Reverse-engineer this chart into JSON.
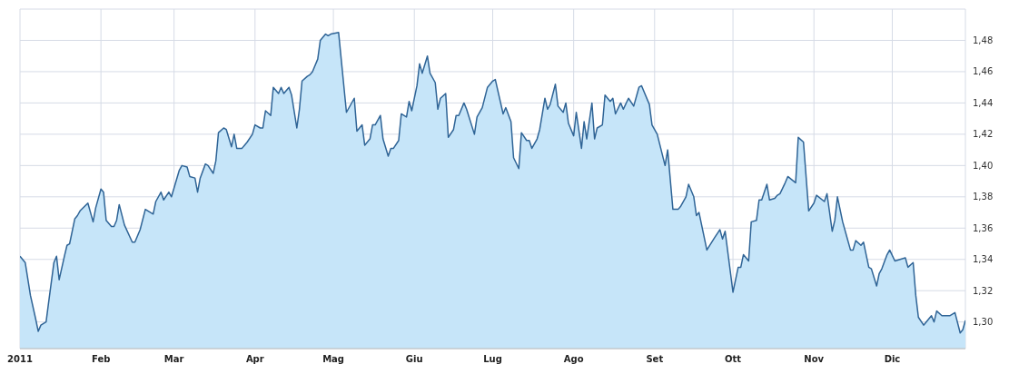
{
  "chart_data": {
    "type": "area",
    "x": [
      "2011-01-01",
      "2011-01-03",
      "2011-01-05",
      "2011-01-07",
      "2011-01-08",
      "2011-01-09",
      "2011-01-11",
      "2011-01-12",
      "2011-01-14",
      "2011-01-15",
      "2011-01-16",
      "2011-01-18",
      "2011-01-19",
      "2011-01-20",
      "2011-01-22",
      "2011-01-23",
      "2011-01-24",
      "2011-01-27",
      "2011-01-29",
      "2011-01-30",
      "2011-02-01",
      "2011-02-02",
      "2011-02-03",
      "2011-02-05",
      "2011-02-06",
      "2011-02-07",
      "2011-02-08",
      "2011-02-10",
      "2011-02-13",
      "2011-02-14",
      "2011-02-16",
      "2011-02-18",
      "2011-02-21",
      "2011-02-22",
      "2011-02-24",
      "2011-02-25",
      "2011-02-27",
      "2011-02-28",
      "2011-03-03",
      "2011-03-04",
      "2011-03-06",
      "2011-03-07",
      "2011-03-09",
      "2011-03-10",
      "2011-03-11",
      "2011-03-13",
      "2011-03-14",
      "2011-03-16",
      "2011-03-17",
      "2011-03-18",
      "2011-03-20",
      "2011-03-21",
      "2011-03-23",
      "2011-03-24",
      "2011-03-25",
      "2011-03-27",
      "2011-03-28",
      "2011-03-29",
      "2011-03-31",
      "2011-04-01",
      "2011-04-03",
      "2011-04-04",
      "2011-04-05",
      "2011-04-07",
      "2011-04-08",
      "2011-04-10",
      "2011-04-11",
      "2011-04-12",
      "2011-04-14",
      "2011-04-15",
      "2011-04-17",
      "2011-04-18",
      "2011-04-19",
      "2011-04-21",
      "2011-04-22",
      "2011-04-23",
      "2011-04-25",
      "2011-04-26",
      "2011-04-28",
      "2011-04-29",
      "2011-04-30",
      "2011-05-03",
      "2011-05-06",
      "2011-05-09",
      "2011-05-10",
      "2011-05-12",
      "2011-05-13",
      "2011-05-15",
      "2011-05-16",
      "2011-05-17",
      "2011-05-19",
      "2011-05-20",
      "2011-05-22",
      "2011-05-23",
      "2011-05-24",
      "2011-05-26",
      "2011-05-27",
      "2011-05-29",
      "2011-05-30",
      "2011-05-31",
      "2011-06-02",
      "2011-06-03",
      "2011-06-04",
      "2011-06-06",
      "2011-06-07",
      "2011-06-09",
      "2011-06-10",
      "2011-06-11",
      "2011-06-13",
      "2011-06-14",
      "2011-06-16",
      "2011-06-17",
      "2011-06-18",
      "2011-06-20",
      "2011-06-21",
      "2011-06-24",
      "2011-06-25",
      "2011-06-27",
      "2011-06-29",
      "2011-07-01",
      "2011-07-02",
      "2011-07-05",
      "2011-07-06",
      "2011-07-08",
      "2011-07-09",
      "2011-07-11",
      "2011-07-12",
      "2011-07-14",
      "2011-07-15",
      "2011-07-16",
      "2011-07-18",
      "2011-07-19",
      "2011-07-21",
      "2011-07-22",
      "2011-07-23",
      "2011-07-25",
      "2011-07-26",
      "2011-07-28",
      "2011-07-29",
      "2011-07-30",
      "2011-08-01",
      "2011-08-02",
      "2011-08-04",
      "2011-08-05",
      "2011-08-06",
      "2011-08-08",
      "2011-08-09",
      "2011-08-10",
      "2011-08-12",
      "2011-08-13",
      "2011-08-15",
      "2011-08-16",
      "2011-08-17",
      "2011-08-19",
      "2011-08-20",
      "2011-08-22",
      "2011-08-24",
      "2011-08-26",
      "2011-08-27",
      "2011-08-30",
      "2011-08-31",
      "2011-09-02",
      "2011-09-05",
      "2011-09-06",
      "2011-09-08",
      "2011-09-10",
      "2011-09-11",
      "2011-09-13",
      "2011-09-14",
      "2011-09-16",
      "2011-09-17",
      "2011-09-18",
      "2011-09-21",
      "2011-09-24",
      "2011-09-26",
      "2011-09-27",
      "2011-09-28",
      "2011-10-01",
      "2011-10-03",
      "2011-10-04",
      "2011-10-05",
      "2011-10-07",
      "2011-10-08",
      "2011-10-10",
      "2011-10-11",
      "2011-10-12",
      "2011-10-14",
      "2011-10-15",
      "2011-10-17",
      "2011-10-18",
      "2011-10-19",
      "2011-10-21",
      "2011-10-22",
      "2011-10-25",
      "2011-10-26",
      "2011-10-28",
      "2011-10-30",
      "2011-11-01",
      "2011-11-02",
      "2011-11-05",
      "2011-11-06",
      "2011-11-08",
      "2011-11-09",
      "2011-11-10",
      "2011-11-12",
      "2011-11-15",
      "2011-11-16",
      "2011-11-17",
      "2011-11-19",
      "2011-11-20",
      "2011-11-22",
      "2011-11-23",
      "2011-11-25",
      "2011-11-26",
      "2011-11-27",
      "2011-11-29",
      "2011-11-30",
      "2011-12-02",
      "2011-12-04",
      "2011-12-06",
      "2011-12-07",
      "2011-12-09",
      "2011-12-10",
      "2011-12-11",
      "2011-12-13",
      "2011-12-16",
      "2011-12-17",
      "2011-12-18",
      "2011-12-20",
      "2011-12-23",
      "2011-12-25",
      "2011-12-27",
      "2011-12-28",
      "2011-12-29"
    ],
    "series": [
      {
        "color": "#2f6496",
        "values": [
          1.342,
          1.338,
          1.317,
          1.302,
          1.294,
          1.298,
          1.3,
          1.313,
          1.338,
          1.342,
          1.327,
          1.342,
          1.349,
          1.35,
          1.366,
          1.368,
          1.371,
          1.376,
          1.364,
          1.373,
          1.385,
          1.383,
          1.365,
          1.361,
          1.361,
          1.365,
          1.375,
          1.362,
          1.351,
          1.351,
          1.359,
          1.372,
          1.369,
          1.377,
          1.383,
          1.378,
          1.383,
          1.38,
          1.397,
          1.4,
          1.399,
          1.393,
          1.392,
          1.383,
          1.392,
          1.401,
          1.4,
          1.395,
          1.403,
          1.421,
          1.424,
          1.423,
          1.412,
          1.42,
          1.411,
          1.411,
          1.413,
          1.415,
          1.42,
          1.426,
          1.424,
          1.424,
          1.435,
          1.432,
          1.45,
          1.446,
          1.45,
          1.446,
          1.45,
          1.445,
          1.424,
          1.436,
          1.454,
          1.457,
          1.458,
          1.46,
          1.468,
          1.48,
          1.484,
          1.483,
          1.484,
          1.485,
          1.434,
          1.443,
          1.422,
          1.426,
          1.413,
          1.417,
          1.426,
          1.426,
          1.432,
          1.417,
          1.406,
          1.411,
          1.411,
          1.416,
          1.433,
          1.431,
          1.441,
          1.435,
          1.451,
          1.465,
          1.459,
          1.47,
          1.459,
          1.453,
          1.436,
          1.443,
          1.446,
          1.418,
          1.423,
          1.432,
          1.432,
          1.44,
          1.436,
          1.42,
          1.431,
          1.437,
          1.45,
          1.454,
          1.455,
          1.433,
          1.437,
          1.428,
          1.405,
          1.398,
          1.421,
          1.416,
          1.416,
          1.411,
          1.417,
          1.423,
          1.443,
          1.436,
          1.439,
          1.452,
          1.438,
          1.434,
          1.44,
          1.427,
          1.419,
          1.434,
          1.411,
          1.428,
          1.417,
          1.44,
          1.417,
          1.424,
          1.426,
          1.445,
          1.441,
          1.443,
          1.433,
          1.44,
          1.436,
          1.443,
          1.438,
          1.45,
          1.451,
          1.439,
          1.426,
          1.42,
          1.4,
          1.41,
          1.372,
          1.372,
          1.374,
          1.38,
          1.388,
          1.38,
          1.368,
          1.37,
          1.346,
          1.354,
          1.359,
          1.353,
          1.358,
          1.319,
          1.335,
          1.335,
          1.343,
          1.339,
          1.364,
          1.365,
          1.378,
          1.378,
          1.388,
          1.378,
          1.379,
          1.381,
          1.382,
          1.389,
          1.393,
          1.389,
          1.418,
          1.415,
          1.371,
          1.376,
          1.381,
          1.377,
          1.382,
          1.358,
          1.365,
          1.38,
          1.364,
          1.346,
          1.346,
          1.352,
          1.349,
          1.351,
          1.335,
          1.334,
          1.323,
          1.331,
          1.334,
          1.343,
          1.346,
          1.339,
          1.34,
          1.341,
          1.335,
          1.338,
          1.317,
          1.303,
          1.298,
          1.304,
          1.3,
          1.307,
          1.304,
          1.304,
          1.306,
          1.293,
          1.295,
          1.301
        ]
      }
    ],
    "xlim": [
      "2011-01-01",
      "2011-12-29"
    ],
    "xticks": [
      {
        "value": "2011-01-01",
        "label": "2011"
      },
      {
        "value": "2011-02-01",
        "label": "Feb"
      },
      {
        "value": "2011-03-01",
        "label": "Mar"
      },
      {
        "value": "2011-04-01",
        "label": "Apr"
      },
      {
        "value": "2011-05-01",
        "label": "Mag"
      },
      {
        "value": "2011-06-01",
        "label": "Giu"
      },
      {
        "value": "2011-07-01",
        "label": "Lug"
      },
      {
        "value": "2011-08-01",
        "label": "Ago"
      },
      {
        "value": "2011-09-01",
        "label": "Set"
      },
      {
        "value": "2011-10-01",
        "label": "Ott"
      },
      {
        "value": "2011-11-01",
        "label": "Nov"
      },
      {
        "value": "2011-12-01",
        "label": "Dic"
      }
    ],
    "ylim": [
      1.283,
      1.5
    ],
    "yticks": [
      {
        "value": 1.3,
        "label": "1,30"
      },
      {
        "value": 1.32,
        "label": "1,32"
      },
      {
        "value": 1.34,
        "label": "1,34"
      },
      {
        "value": 1.36,
        "label": "1,36"
      },
      {
        "value": 1.38,
        "label": "1,38"
      },
      {
        "value": 1.4,
        "label": "1,40"
      },
      {
        "value": 1.42,
        "label": "1,42"
      },
      {
        "value": 1.44,
        "label": "1,44"
      },
      {
        "value": 1.46,
        "label": "1,46"
      },
      {
        "value": 1.48,
        "label": "1,48"
      },
      {
        "value": 1.5,
        "label": null
      }
    ],
    "grid": true
  }
}
